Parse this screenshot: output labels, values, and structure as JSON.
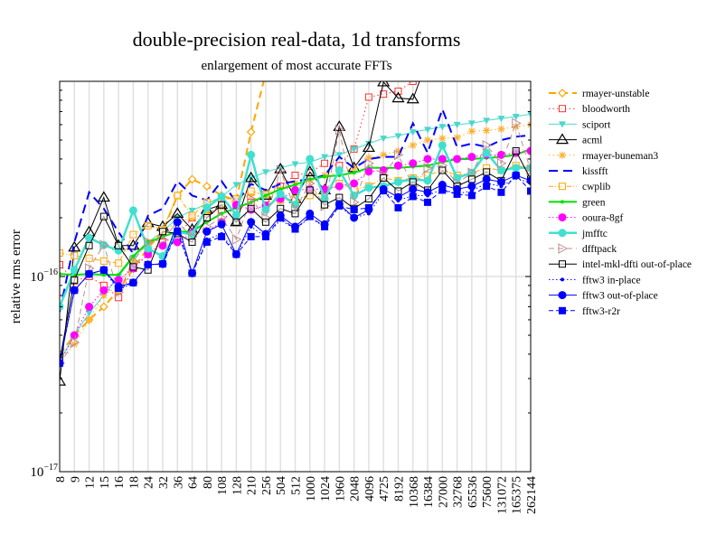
{
  "chart_data": {
    "type": "line",
    "title": "double-precision real-data, 1d transforms",
    "subtitle": "enlargement of most accurate FFTs",
    "xlabel": "",
    "ylabel": "relative rms error",
    "yscale": "log",
    "ylim": [
      1e-17,
      1e-15
    ],
    "ytick_labels": [
      {
        "value": 1e-17,
        "mantissa": "10",
        "exp": "−17"
      },
      {
        "value": 1e-16,
        "mantissa": "10",
        "exp": "−16"
      }
    ],
    "grid": true,
    "legend_placement": "right",
    "categories": [
      "8",
      "9",
      "12",
      "15",
      "16",
      "18",
      "24",
      "32",
      "36",
      "64",
      "80",
      "108",
      "128",
      "210",
      "256",
      "504",
      "512",
      "1000",
      "1024",
      "1960",
      "2048",
      "4096",
      "4725",
      "8192",
      "10368",
      "16384",
      "27000",
      "32768",
      "65536",
      "75600",
      "131072",
      "165375",
      "262144"
    ],
    "series": [
      {
        "name": "rmayer-unstable",
        "color": "#FFA500",
        "dash": "8,5",
        "width": 2,
        "marker": "diamond-open",
        "values": [
          4e-17,
          5e-17,
          6e-17,
          7e-17,
          8.5e-17,
          1.1e-16,
          1.4e-16,
          1.7e-16,
          2.6e-16,
          3.15e-16,
          2.9e-16,
          2.6e-16,
          2.45e-16,
          5.5e-16,
          1.1e-15,
          null,
          null,
          null,
          null,
          null,
          null,
          null,
          null,
          null,
          null,
          null,
          null,
          null,
          null,
          null,
          null,
          null,
          null
        ]
      },
      {
        "name": "bloodworth",
        "color": "#FF3030",
        "dash": "1.5,3",
        "width": 1,
        "marker": "square-open",
        "values": [
          1.15e-16,
          9.5e-17,
          1e-16,
          9e-17,
          7.8e-17,
          1.1e-16,
          1.3e-16,
          1.5e-16,
          1.6e-16,
          2e-16,
          2.1e-16,
          2.2e-16,
          2.3e-16,
          2.4e-16,
          2.5e-16,
          2.9e-16,
          3.3e-16,
          3.4e-16,
          3.8e-16,
          3.7e-16,
          4.5e-16,
          8.3e-16,
          8.6e-16,
          8.9e-16,
          1e-15,
          1.2e-15,
          null,
          null,
          null,
          null,
          null,
          null,
          null
        ]
      },
      {
        "name": "sciport",
        "color": "#48D8CC",
        "dash": "",
        "width": 1,
        "marker": "tri-down-filled",
        "values": [
          3.7e-17,
          5e-17,
          6.5e-17,
          8e-17,
          1e-16,
          1.25e-16,
          1.5e-16,
          1.7e-16,
          2e-16,
          2.18e-16,
          2.36e-16,
          2.57e-16,
          2.95e-16,
          3.2e-16,
          3.43e-16,
          3.6e-16,
          3.77e-16,
          3.85e-16,
          4.1e-16,
          4.2e-16,
          4.5e-16,
          4.8e-16,
          5.1e-16,
          5.25e-16,
          5.5e-16,
          5.66e-16,
          5.85e-16,
          6e-16,
          6.1e-16,
          6.3e-16,
          6.45e-16,
          6.6e-16,
          6.8e-16
        ]
      },
      {
        "name": "acml",
        "color": "#000000",
        "dash": "",
        "width": 1,
        "marker": "tri-up-open",
        "values": [
          2.9e-17,
          1.41e-16,
          1.69e-16,
          2.54e-16,
          1.44e-16,
          1.44e-16,
          1.88e-16,
          1.8e-16,
          2.1e-16,
          1.74e-16,
          2.2e-16,
          2.33e-16,
          1.9e-16,
          3.2e-16,
          2.6e-16,
          3.55e-16,
          2.5e-16,
          3.43e-16,
          2.77e-16,
          5.85e-16,
          3.6e-16,
          4.57e-16,
          9.9e-16,
          8.2e-16,
          8.1e-16,
          1.3e-15,
          null,
          null,
          null,
          null,
          null,
          null,
          null
        ]
      },
      {
        "name": "rmayer-buneman3",
        "color": "#FFB030",
        "dash": "1.5,3",
        "width": 1,
        "marker": "star",
        "values": [
          3.6e-17,
          4.5e-17,
          6e-17,
          8e-17,
          9e-17,
          1.2e-16,
          1.5e-16,
          1.7e-16,
          1.9e-16,
          2e-16,
          2.1e-16,
          2.3e-16,
          2.5e-16,
          2.6e-16,
          2.7e-16,
          2.8e-16,
          3e-16,
          3.1e-16,
          3.3e-16,
          3.4e-16,
          3.6e-16,
          4.06e-16,
          4.2e-16,
          4.4e-16,
          4.7e-16,
          5e-16,
          5.1e-16,
          5.15e-16,
          5.55e-16,
          5.6e-16,
          5.7e-16,
          5.85e-16,
          6e-16
        ]
      },
      {
        "name": "kissfft",
        "color": "#0000FF",
        "dash": "10,6",
        "width": 2,
        "marker": "none",
        "values": [
          6.6e-17,
          1.5e-16,
          2.7e-16,
          2.23e-16,
          1.69e-16,
          1.31e-16,
          2.05e-16,
          2.23e-16,
          3.08e-16,
          2.6e-16,
          2.46e-16,
          3.08e-16,
          2.4e-16,
          2.98e-16,
          2.77e-16,
          2.98e-16,
          3.08e-16,
          3.15e-16,
          3.3e-16,
          4.1e-16,
          3.6e-16,
          4e-16,
          4.1e-16,
          4.1e-16,
          6.1e-16,
          4.3e-16,
          7.2e-16,
          4.6e-16,
          4.8e-16,
          4.6e-16,
          5e-16,
          5.2e-16,
          5.3e-16
        ]
      },
      {
        "name": "cwplib",
        "color": "#FFA500",
        "dash": "5,2,1,2",
        "width": 1,
        "marker": "square-open",
        "values": [
          1.32e-16,
          1.28e-16,
          1.24e-16,
          1.2e-16,
          1.17e-16,
          1.64e-16,
          1.82e-16,
          1.74e-16,
          2.6e-16,
          2.05e-16,
          2.4e-16,
          2.5e-16,
          2.5e-16,
          2.74e-16,
          2.63e-16,
          2.46e-16,
          2.5e-16,
          2.6e-16,
          2.7e-16,
          3e-16,
          2.8e-16,
          2.9e-16,
          3.2e-16,
          3.1e-16,
          3.2e-16,
          3.3e-16,
          3.5e-16,
          3.3e-16,
          3.4e-16,
          3.6e-16,
          3.5e-16,
          3.7e-16,
          3.6e-16
        ]
      },
      {
        "name": "green",
        "color": "#00E000",
        "dash": "",
        "width": 2,
        "marker": "small-dot",
        "values": [
          1.03e-16,
          1.02e-16,
          1.03e-16,
          1.02e-16,
          1.02e-16,
          1.27e-16,
          1.5e-16,
          1.6e-16,
          1.7e-16,
          1.7e-16,
          1.9e-16,
          2.1e-16,
          2.25e-16,
          2.4e-16,
          2.6e-16,
          2.8e-16,
          2.95e-16,
          3.15e-16,
          3.25e-16,
          3.3e-16,
          3.4e-16,
          3.6e-16,
          3.6e-16,
          3.6e-16,
          3.65e-16,
          3.7e-16,
          3.85e-16,
          4e-16,
          4e-16,
          4.05e-16,
          4.1e-16,
          4.2e-16,
          4.5e-16
        ]
      },
      {
        "name": "ooura-8gf",
        "color": "#FF00FF",
        "dash": "1.5,2.5",
        "width": 1,
        "marker": "circle-filled",
        "values": [
          3.6e-17,
          5e-17,
          7e-17,
          8.5e-17,
          9.6e-17,
          1.1e-16,
          1.3e-16,
          1.44e-16,
          1.5e-16,
          1.67e-16,
          1.7e-16,
          1.9e-16,
          2.33e-16,
          2.2e-16,
          2.3e-16,
          2.5e-16,
          2.77e-16,
          2.8e-16,
          2.8e-16,
          2.9e-16,
          3e-16,
          3.45e-16,
          3.5e-16,
          3.7e-16,
          3.8e-16,
          4e-16,
          4e-16,
          4e-16,
          4.1e-16,
          4.2e-16,
          4.2e-16,
          4.3e-16,
          4.4e-16
        ]
      },
      {
        "name": "jmfftc",
        "color": "#40E0D0",
        "dash": "",
        "width": 2.5,
        "marker": "circle-filled",
        "values": [
          7e-17,
          1.08e-16,
          1.58e-16,
          1.45e-16,
          1.36e-16,
          2.18e-16,
          1.39e-16,
          1.27e-16,
          1.69e-16,
          1.64e-16,
          2.25e-16,
          2.57e-16,
          2.07e-16,
          4.2e-16,
          2.2e-16,
          2.65e-16,
          2.33e-16,
          4e-16,
          2.5e-16,
          3.5e-16,
          2.6e-16,
          2.85e-16,
          2.9e-16,
          3.05e-16,
          3.15e-16,
          3.1e-16,
          4.7e-16,
          3.2e-16,
          3.4e-16,
          4.3e-16,
          3.5e-16,
          3.6e-16,
          3.6e-16
        ]
      },
      {
        "name": "dfftpack",
        "color": "#BC8F8F",
        "dash": "6,4",
        "width": 1,
        "marker": "tri-right-open",
        "values": [
          3.6e-17,
          4.6e-17,
          1.1e-16,
          1.45e-16,
          8.3e-17,
          1.2e-16,
          1.5e-16,
          1.55e-16,
          1.9e-16,
          1.6e-16,
          1.8e-16,
          2e-16,
          1.55e-16,
          2.5e-16,
          2e-16,
          3.5e-16,
          2.2e-16,
          3e-16,
          2.3e-16,
          5.65e-16,
          2.4e-16,
          3.8e-16,
          3.3e-16,
          4.2e-16,
          2.9e-16,
          3.6e-16,
          3.7e-16,
          3e-16,
          3.4e-16,
          4.7e-16,
          3.8e-16,
          6.1e-16,
          3.5e-16
        ]
      },
      {
        "name": "intel-mkl-dfti out-of-place",
        "color": "#000000",
        "dash": "",
        "width": 1,
        "marker": "square-open",
        "values": [
          3.7e-17,
          9.6e-17,
          1.44e-16,
          2.03e-16,
          1.44e-16,
          1.12e-16,
          1.08e-16,
          1.7e-16,
          1.66e-16,
          1.5e-16,
          2e-16,
          2.33e-16,
          1.9e-16,
          2.23e-16,
          1.9e-16,
          2.23e-16,
          2.1e-16,
          2.77e-16,
          2.33e-16,
          2.54e-16,
          2.23e-16,
          2.5e-16,
          3.2e-16,
          2.74e-16,
          3.05e-16,
          2.77e-16,
          3.5e-16,
          2.9e-16,
          3.15e-16,
          3.43e-16,
          3.1e-16,
          4.4e-16,
          3.15e-16
        ]
      },
      {
        "name": "fftw3 in-place",
        "color": "#0000FF",
        "dash": "1.5,2.5",
        "width": 1,
        "marker": "small-dot",
        "values": [
          3.6e-17,
          8.5e-17,
          1.03e-16,
          1.08e-16,
          8.5e-17,
          9.3e-17,
          1.15e-16,
          1.16e-16,
          1.75e-16,
          1.04e-16,
          1.55e-16,
          1.65e-16,
          1.3e-16,
          1.8e-16,
          1.6e-16,
          1.95e-16,
          1.75e-16,
          2e-16,
          1.8e-16,
          2.3e-16,
          2e-16,
          2.1e-16,
          2.7e-16,
          2.45e-16,
          2.6e-16,
          2.6e-16,
          2.8e-16,
          2.65e-16,
          2.75e-16,
          3e-16,
          2.9e-16,
          3.2e-16,
          3e-16
        ]
      },
      {
        "name": "fftw3 out-of-place",
        "color": "#0000FF",
        "dash": "",
        "width": 1,
        "marker": "circle-filled",
        "values": [
          3.6e-17,
          8.5e-17,
          1.03e-16,
          1.08e-16,
          8.9e-17,
          9.3e-17,
          1.15e-16,
          1.16e-16,
          1.9e-16,
          1.04e-16,
          1.7e-16,
          1.85e-16,
          1.3e-16,
          1.9e-16,
          1.65e-16,
          2.05e-16,
          1.8e-16,
          2.1e-16,
          1.85e-16,
          2.35e-16,
          2e-16,
          2.2e-16,
          2.8e-16,
          2.55e-16,
          2.8e-16,
          2.7e-16,
          2.95e-16,
          2.8e-16,
          2.9e-16,
          3.15e-16,
          3.05e-16,
          3.3e-16,
          3.1e-16
        ]
      },
      {
        "name": "fftw3-r2r",
        "color": "#0000FF",
        "dash": "5,3",
        "width": 1,
        "marker": "square-filled",
        "values": [
          3.6e-17,
          8.5e-17,
          1.03e-16,
          1.08e-16,
          8.7e-17,
          9.3e-17,
          1.15e-16,
          1.16e-16,
          1.7e-16,
          1.04e-16,
          1.5e-16,
          1.6e-16,
          1.3e-16,
          1.6e-16,
          1.6e-16,
          2e-16,
          1.75e-16,
          2.03e-16,
          1.8e-16,
          2.3e-16,
          2.2e-16,
          2.25e-16,
          2.75e-16,
          2.25e-16,
          2.57e-16,
          2.4e-16,
          2.77e-16,
          2.64e-16,
          2.6e-16,
          2.9e-16,
          2.7e-16,
          3.3e-16,
          2.74e-16
        ]
      }
    ]
  }
}
